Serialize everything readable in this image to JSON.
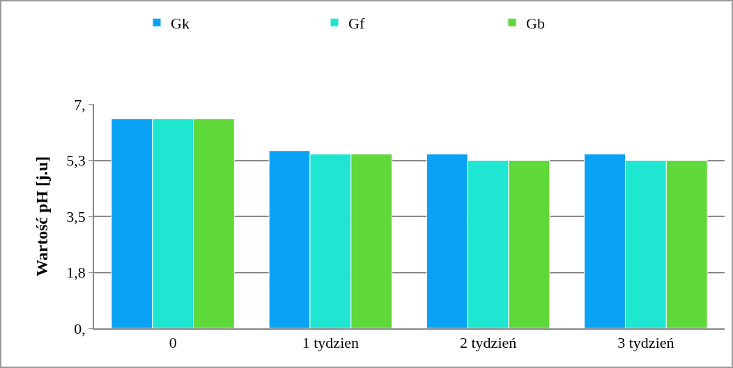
{
  "chart_data": {
    "type": "bar",
    "ylabel": "Wartość pH [j.u]",
    "categories": [
      "0",
      "1 tydzien",
      "2 tydzień",
      "3 tydzień"
    ],
    "series": [
      {
        "name": "Gk",
        "color": "#0aa2f5",
        "values": [
          6.55,
          5.55,
          5.45,
          5.45
        ]
      },
      {
        "name": "Gf",
        "color": "#1ee6d0",
        "values": [
          6.55,
          5.45,
          5.25,
          5.25
        ]
      },
      {
        "name": "Gb",
        "color": "#5fd83a",
        "values": [
          6.55,
          5.45,
          5.25,
          5.25
        ]
      }
    ],
    "ylim": [
      0,
      7
    ],
    "yticks": [
      {
        "value": 0,
        "label": "0,"
      },
      {
        "value": 1.75,
        "label": "1,8"
      },
      {
        "value": 3.5,
        "label": "3,5"
      },
      {
        "value": 5.25,
        "label": "5,3"
      },
      {
        "value": 7,
        "label": "7,"
      }
    ],
    "grid": "y",
    "legend": "top"
  }
}
